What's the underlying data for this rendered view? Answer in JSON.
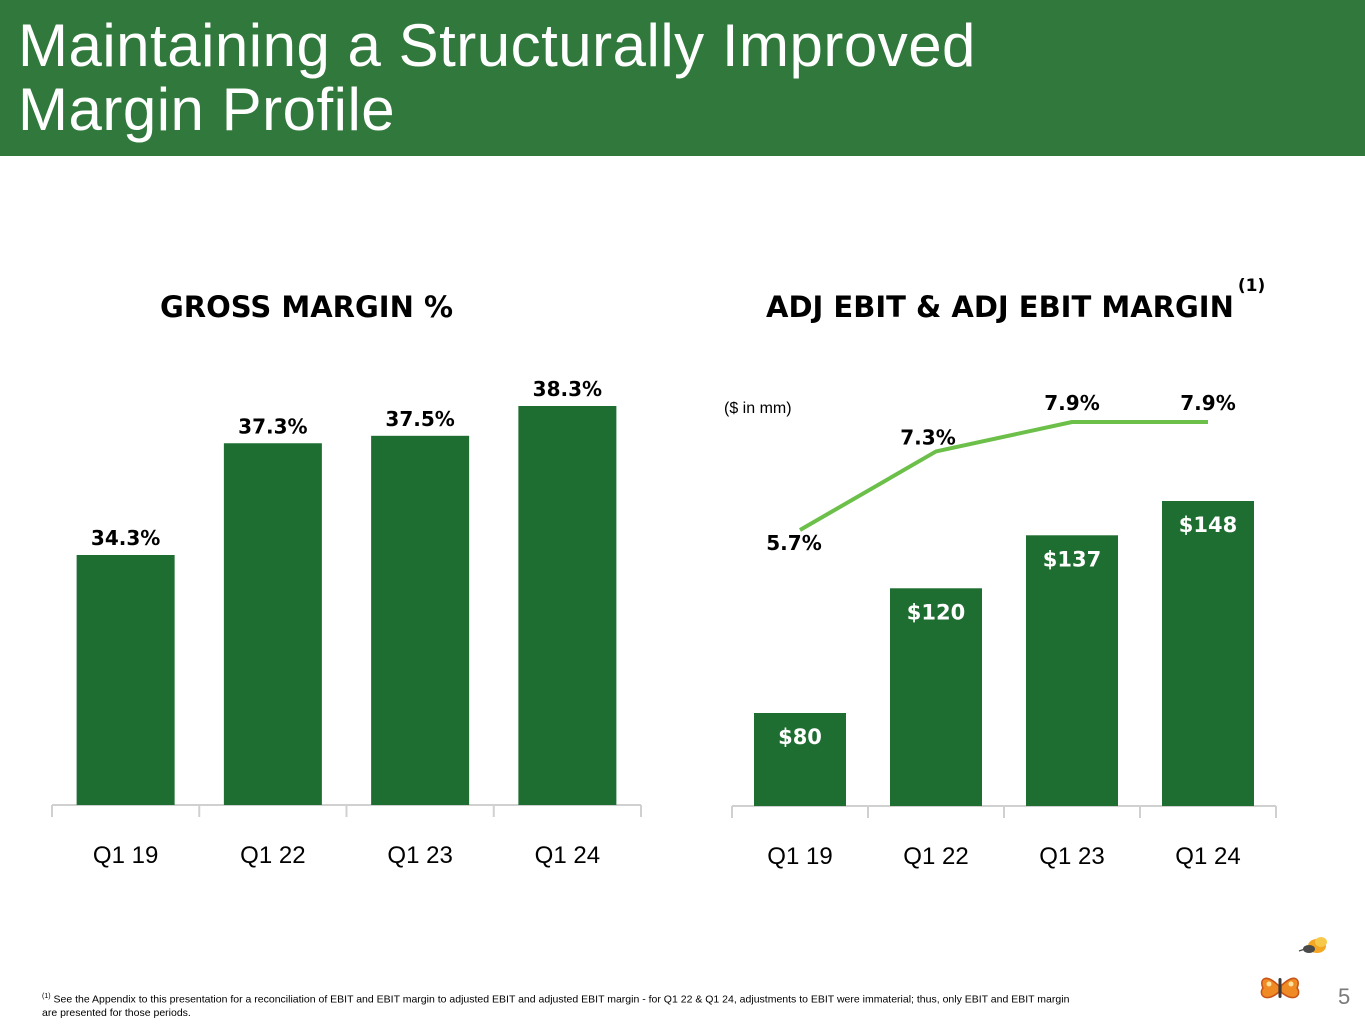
{
  "header": {
    "title_line1": "Maintaining a Structurally Improved",
    "title_line2": "Margin Profile"
  },
  "colors": {
    "header_bg": "#31783c",
    "bar": "#1f6e31",
    "line": "#6cc04a"
  },
  "chart_data": [
    {
      "type": "bar",
      "title": "GROSS MARGIN %",
      "categories": [
        "Q1 19",
        "Q1 22",
        "Q1 23",
        "Q1 24"
      ],
      "values": [
        34.3,
        37.3,
        37.5,
        38.3
      ],
      "data_labels": [
        "34.3%",
        "37.3%",
        "37.5%",
        "38.3%"
      ],
      "grid": false
    },
    {
      "type": "bar",
      "title": "ADJ EBIT & ADJ EBIT MARGIN",
      "title_superscript": "(1)",
      "unit_note": "($ in mm)",
      "categories": [
        "Q1 19",
        "Q1 22",
        "Q1 23",
        "Q1 24"
      ],
      "series": [
        {
          "values": [
            80,
            120,
            137,
            148
          ],
          "data_labels": [
            "$80",
            "$120",
            "$137",
            "$148"
          ]
        },
        {
          "type": "line",
          "values": [
            5.7,
            7.3,
            7.9,
            7.9
          ],
          "data_labels": [
            "5.7%",
            "7.3%",
            "7.9%",
            "7.9%"
          ]
        }
      ],
      "grid": false
    }
  ],
  "footnote": {
    "marker": "(1)",
    "text": " See the Appendix to this presentation for a reconciliation of EBIT and EBIT margin to adjusted EBIT and adjusted EBIT margin - for Q1 22 & Q1 24, adjustments to EBIT were immaterial; thus, only EBIT and EBIT margin are presented for those periods."
  },
  "page_number": "5",
  "logo": {
    "icon": "butterfly-bee-logo"
  }
}
